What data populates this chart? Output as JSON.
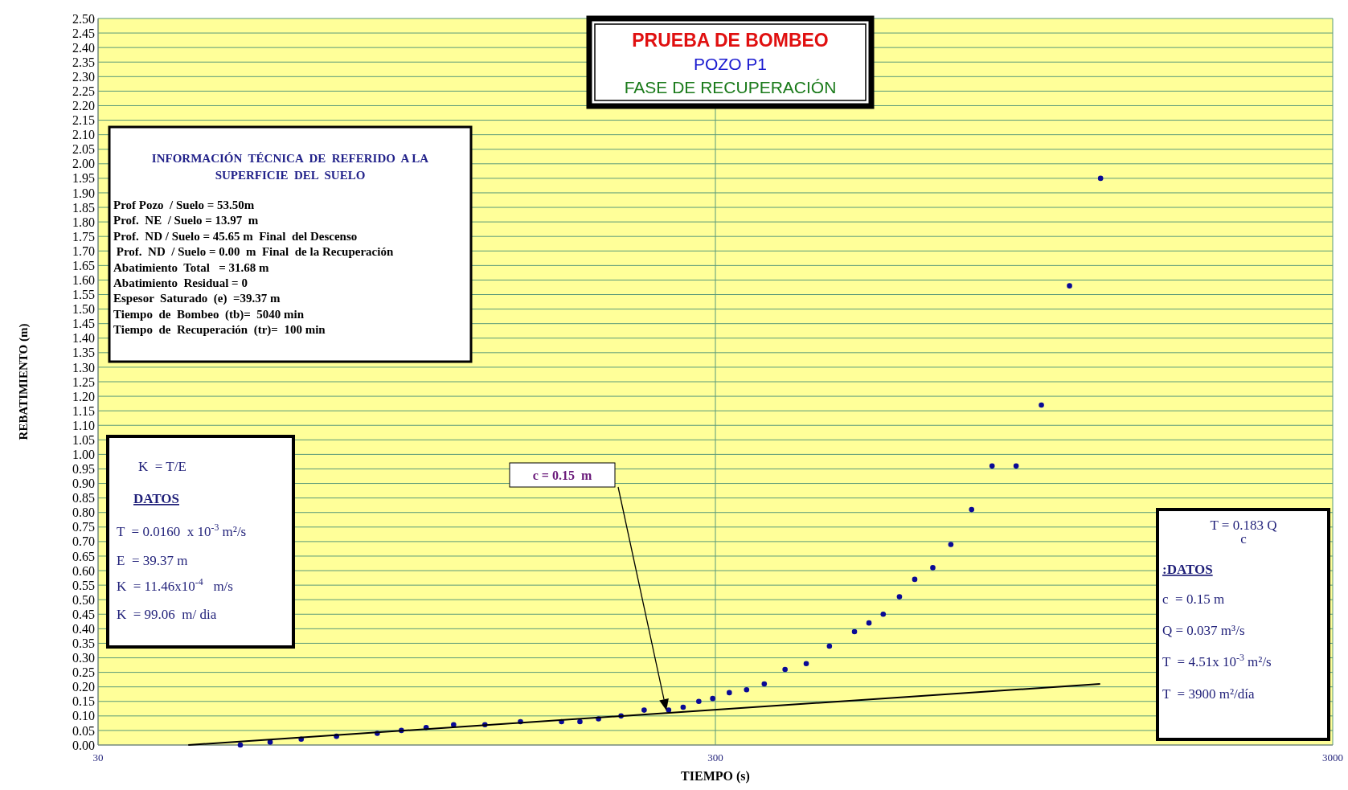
{
  "chart_data": {
    "type": "scatter",
    "title": "PRUEBA DE BOMBEO",
    "subtitle": "POZO P1",
    "xlabel": "TIEMPO (s)",
    "ylabel": "REBATIMIENTO (m)",
    "log": "x",
    "grid": true,
    "marker": "circle",
    "xlim": [
      30,
      3000
    ],
    "xticks": [
      30,
      300,
      3000
    ],
    "ylim": [
      0,
      2.5
    ],
    "yticks": [
      {
        "value": 0,
        "label": "0.00"
      },
      {
        "value": 0.05,
        "label": "0.05"
      },
      {
        "value": 0.1,
        "label": "0.10"
      },
      {
        "value": 0.15,
        "label": "0.15"
      },
      {
        "value": 0.2,
        "label": "0.20"
      },
      {
        "value": 0.25,
        "label": "0.25"
      },
      {
        "value": 0.3,
        "label": "0.30"
      },
      {
        "value": 0.35,
        "label": "0.35"
      },
      {
        "value": 0.4,
        "label": "0.40"
      },
      {
        "value": 0.45,
        "label": "0.45"
      },
      {
        "value": 0.5,
        "label": "0.50"
      },
      {
        "value": 0.55,
        "label": "0.55"
      },
      {
        "value": 0.6,
        "label": "0.60"
      },
      {
        "value": 0.65,
        "label": "0.65"
      },
      {
        "value": 0.7,
        "label": "0.70"
      },
      {
        "value": 0.75,
        "label": "0.75"
      },
      {
        "value": 0.8,
        "label": "0.80"
      },
      {
        "value": 0.85,
        "label": "0.85"
      },
      {
        "value": 0.9,
        "label": "0.90"
      },
      {
        "value": 0.95,
        "label": "0.95"
      },
      {
        "value": 1,
        "label": "1.00"
      },
      {
        "value": 1.05,
        "label": "1.05"
      },
      {
        "value": 1.1,
        "label": "1.10"
      },
      {
        "value": 1.15,
        "label": "1.15"
      },
      {
        "value": 1.2,
        "label": "1.20"
      },
      {
        "value": 1.25,
        "label": "1.25"
      },
      {
        "value": 1.3,
        "label": "1.30"
      },
      {
        "value": 1.35,
        "label": "1.35"
      },
      {
        "value": 1.4,
        "label": "1.40"
      },
      {
        "value": 1.45,
        "label": "1.45"
      },
      {
        "value": 1.5,
        "label": "1.50"
      },
      {
        "value": 1.55,
        "label": "1.55"
      },
      {
        "value": 1.6,
        "label": "1.60"
      },
      {
        "value": 1.65,
        "label": "1.65"
      },
      {
        "value": 1.7,
        "label": "1.70"
      },
      {
        "value": 1.75,
        "label": "1.75"
      },
      {
        "value": 1.8,
        "label": "1.80"
      },
      {
        "value": 1.85,
        "label": "1.85"
      },
      {
        "value": 1.9,
        "label": "1.90"
      },
      {
        "value": 1.95,
        "label": "1.95"
      },
      {
        "value": 2,
        "label": "2.00"
      },
      {
        "value": 2.05,
        "label": "2.05"
      },
      {
        "value": 2.1,
        "label": "2.10"
      },
      {
        "value": 2.15,
        "label": "2.15"
      },
      {
        "value": 2.2,
        "label": "2.20"
      },
      {
        "value": 2.25,
        "label": "2.25"
      },
      {
        "value": 2.3,
        "label": "2.30"
      },
      {
        "value": 2.35,
        "label": "2.35"
      },
      {
        "value": 2.4,
        "label": "2.40"
      },
      {
        "value": 2.45,
        "label": "2.45"
      },
      {
        "value": 2.5,
        "label": "2.50"
      }
    ],
    "series": [
      {
        "type": "scatter",
        "color": "#0a0a96",
        "x": [
          51,
          57,
          64,
          73,
          85,
          93,
          102,
          113,
          127,
          145,
          169,
          181,
          194,
          211,
          230,
          252,
          266,
          282,
          297,
          316,
          337,
          360,
          389,
          421,
          459,
          504,
          532,
          561,
          596,
          631,
          675,
          722,
          780,
          842,
          921,
          1012,
          1124,
          1262
        ],
        "values": [
          0,
          0.01,
          0.02,
          0.03,
          0.04,
          0.05,
          0.06,
          0.07,
          0.07,
          0.08,
          0.08,
          0.08,
          0.09,
          0.1,
          0.12,
          0.12,
          0.13,
          0.15,
          0.16,
          0.18,
          0.19,
          0.21,
          0.26,
          0.28,
          0.34,
          0.39,
          0.42,
          0.45,
          0.51,
          0.57,
          0.61,
          0.69,
          0.81,
          0.96,
          0.96,
          1.17,
          1.58,
          1.95
        ]
      },
      {
        "type": "line",
        "color": "#000000",
        "marker": "none",
        "x": [
          42,
          1260
        ],
        "values": [
          0,
          0.21
        ]
      }
    ],
    "annotations": [
      "FASE DE RECUPERACIÓN",
      "INFORMACIÓN  TÉCNICA  DE  REFERIDO  A LA\nSUPERFICIE  DEL  SUELO\nProf Pozo  / Suelo = 53.50m\nProf.  NE  / Suelo = 13.97  m\nProf.  ND / Suelo = 45.65 m  Final  del Descenso\n Prof.  ND  / Suelo = 0.00  m  Final  de la Recuperación\nAbatimiento  Total   = 31.68 m\nAbatimiento  Residual = 0\nEspesor  Saturado  (e)  =39.37 m\nTiempo  de  Bombeo  (tb)=  5040 min\nTiempo  de  Recuperación  (tr)=  100 min",
      "K  = T/E\nDATOS\nT  = 0.0160  x 10$^{-3}$ m²/s\nE  = 39.37 m\nK  = 11.46x10$^{-4}$   m/s\nK  = 99.06  m/ dia",
      "T = 0.183 Q\nc\n:DATOS\nc  = 0.15 m\nQ = 0.037 m³/s\nT  = 4.51x 10$^{-3}$ m²/s\nT  = 3900 m²/día",
      "c = 0.15  m"
    ]
  }
}
